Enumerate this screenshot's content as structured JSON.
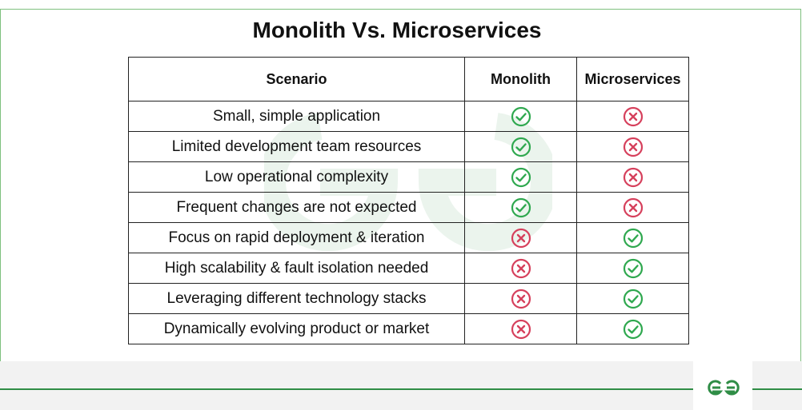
{
  "title": "Monolith Vs. Microservices",
  "table": {
    "headers": [
      "Scenario",
      "Monolith",
      "Microservices"
    ],
    "rows": [
      {
        "scenario": "Small, simple application",
        "monolith": "yes",
        "microservices": "no"
      },
      {
        "scenario": "Limited development team resources",
        "monolith": "yes",
        "microservices": "no"
      },
      {
        "scenario": "Low operational complexity",
        "monolith": "yes",
        "microservices": "no"
      },
      {
        "scenario": "Frequent changes are not expected",
        "monolith": "yes",
        "microservices": "no"
      },
      {
        "scenario": "Focus on rapid deployment & iteration",
        "monolith": "no",
        "microservices": "yes"
      },
      {
        "scenario": "High scalability & fault isolation needed",
        "monolith": "no",
        "microservices": "yes"
      },
      {
        "scenario": "Leveraging different technology stacks",
        "monolith": "no",
        "microservices": "yes"
      },
      {
        "scenario": "Dynamically evolving product or market",
        "monolith": "no",
        "microservices": "yes"
      }
    ]
  },
  "icons": {
    "yes": "check-circle-icon",
    "no": "x-circle-icon"
  },
  "colors": {
    "yes": "#2fa84f",
    "no": "#d6405c",
    "brand": "#2f8d46"
  },
  "logo": "gfg-logo"
}
